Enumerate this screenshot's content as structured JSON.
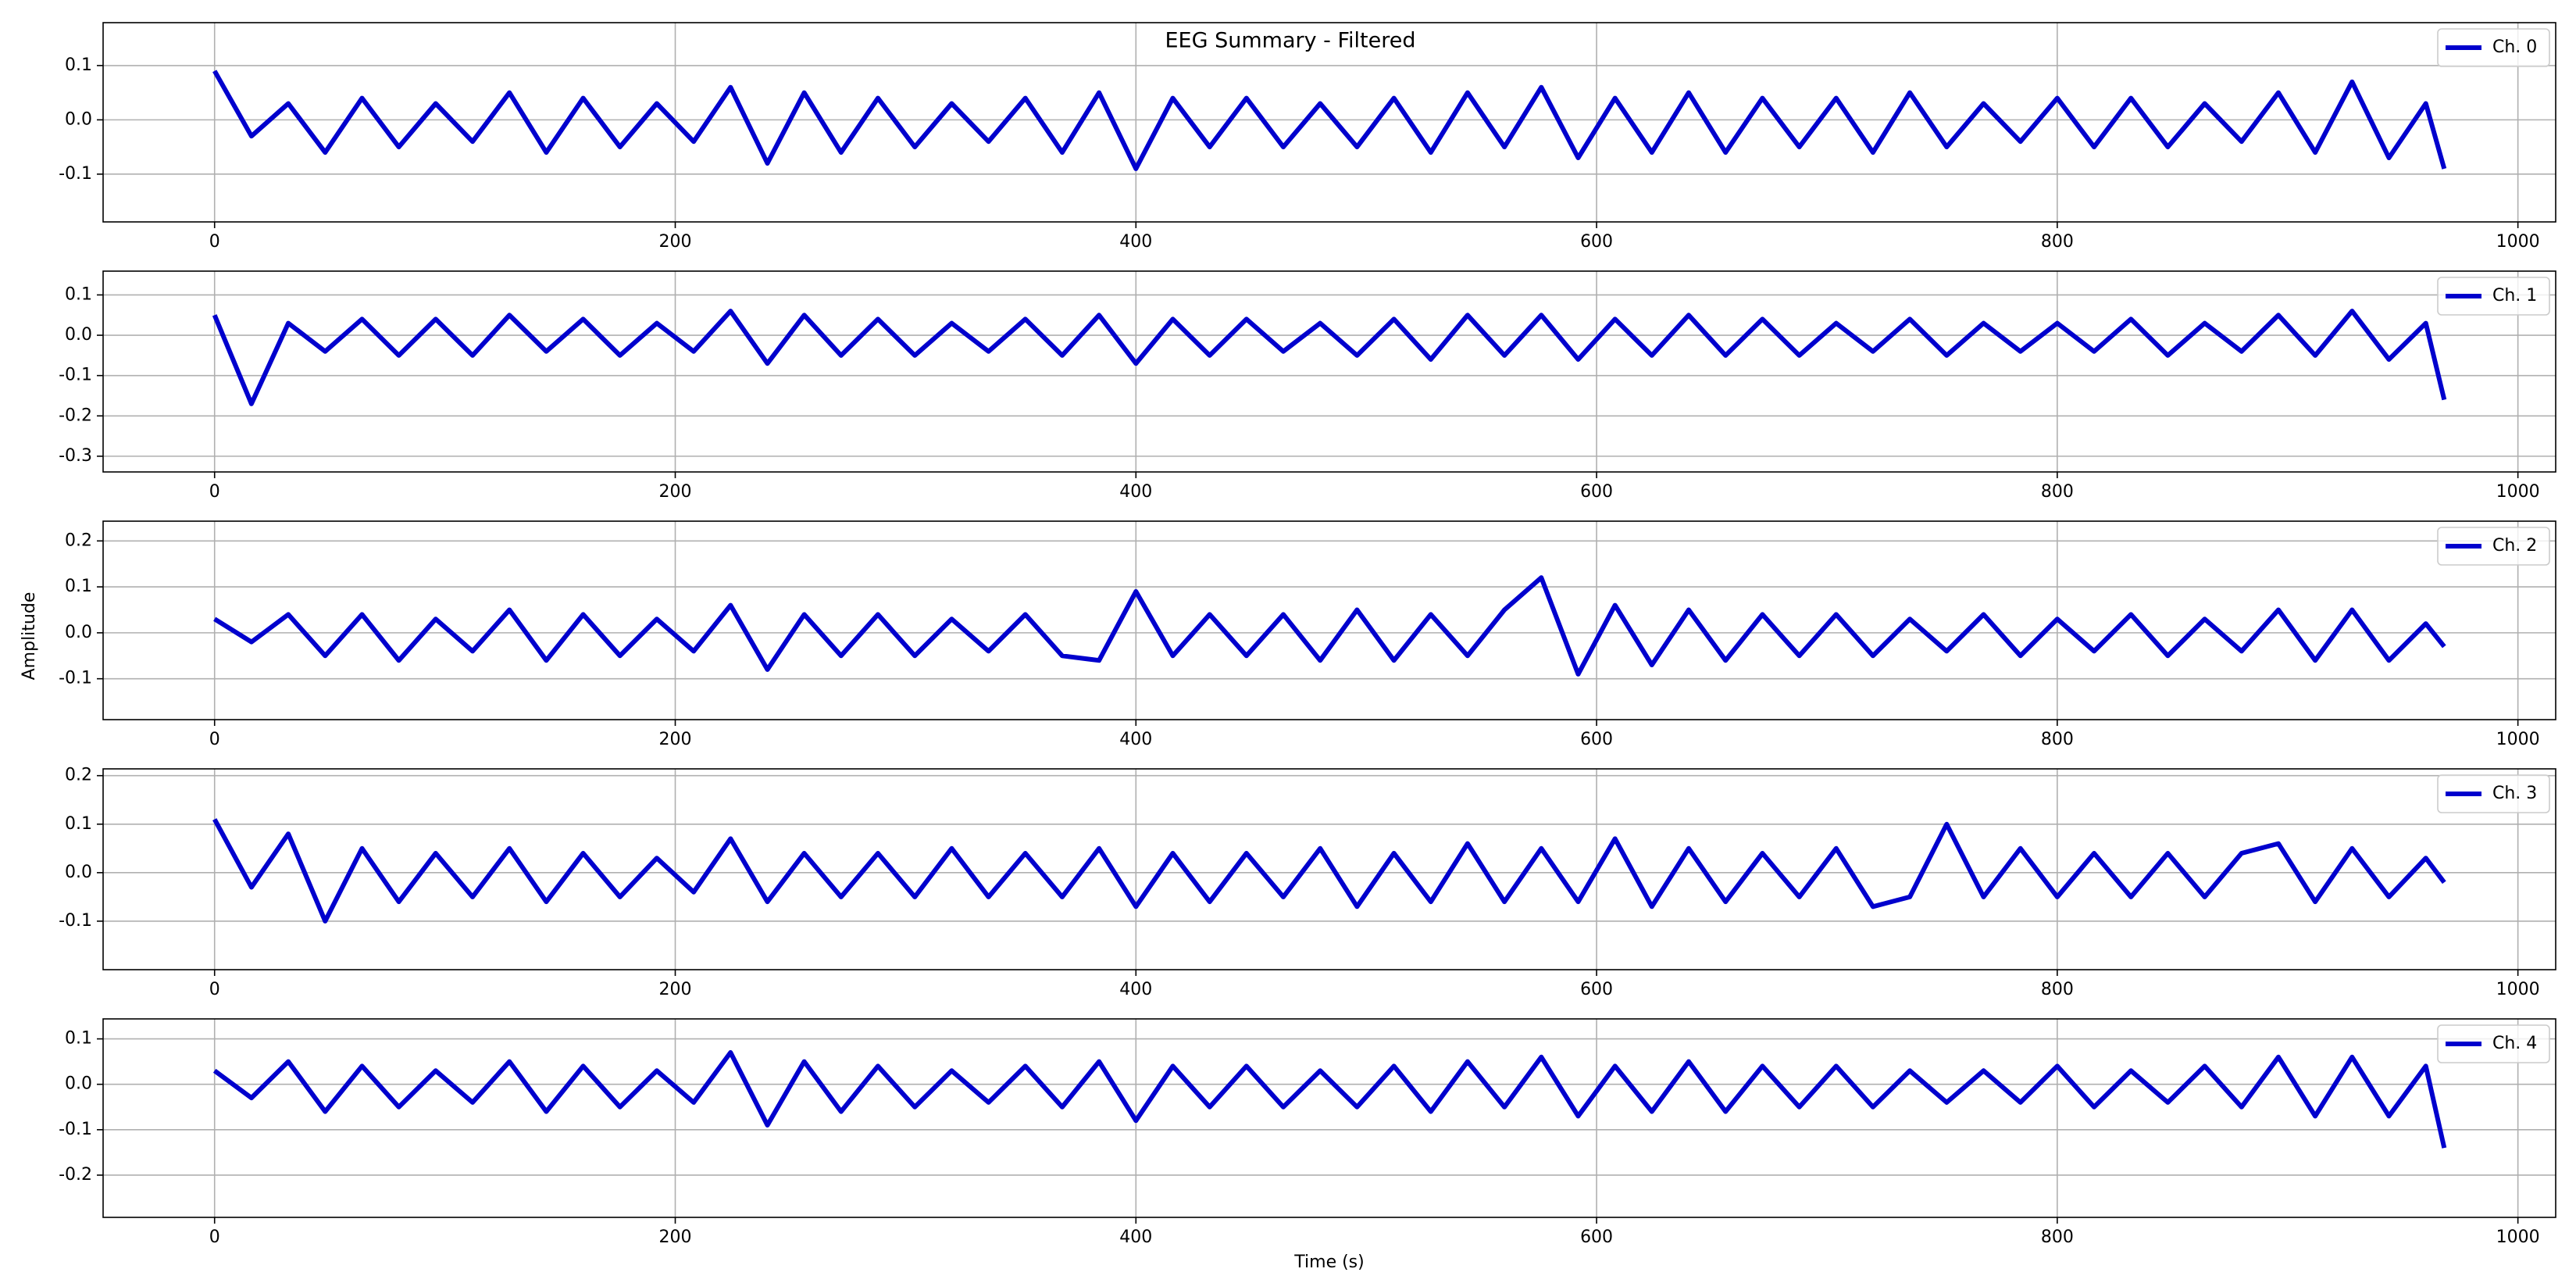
{
  "chart_data": [
    {
      "type": "line",
      "title": "EEG Summary - Filtered",
      "x": [
        0,
        16,
        32,
        48,
        64,
        80,
        96,
        112,
        128,
        144,
        160,
        176,
        192,
        208,
        224,
        240,
        256,
        272,
        288,
        304,
        320,
        336,
        352,
        368,
        384,
        400,
        416,
        432,
        448,
        464,
        480,
        496,
        512,
        528,
        544,
        560,
        576,
        592,
        608,
        624,
        640,
        656,
        672,
        688,
        704,
        720,
        736,
        752,
        768,
        784,
        800,
        816,
        832,
        848,
        864,
        880,
        896,
        912,
        928,
        944,
        960,
        968
      ],
      "series": [
        {
          "name": "Ch. 0",
          "color": "#0000cd",
          "values": [
            0.09,
            -0.03,
            0.03,
            -0.06,
            0.04,
            -0.05,
            0.03,
            -0.04,
            0.05,
            -0.06,
            0.04,
            -0.05,
            0.03,
            -0.04,
            0.06,
            -0.08,
            0.05,
            -0.06,
            0.04,
            -0.05,
            0.03,
            -0.04,
            0.04,
            -0.06,
            0.05,
            -0.09,
            0.04,
            -0.05,
            0.04,
            -0.05,
            0.03,
            -0.05,
            0.04,
            -0.06,
            0.05,
            -0.05,
            0.06,
            -0.07,
            0.04,
            -0.06,
            0.05,
            -0.06,
            0.04,
            -0.05,
            0.04,
            -0.06,
            0.05,
            -0.05,
            0.03,
            -0.04,
            0.04,
            -0.05,
            0.04,
            -0.05,
            0.03,
            -0.04,
            0.05,
            -0.06,
            0.07,
            -0.07,
            0.03,
            -0.09
          ]
        }
      ],
      "xlim": [
        -48.4,
        1016.4
      ],
      "ylim": [
        -0.188,
        0.179
      ],
      "xticks": [
        0,
        200,
        400,
        600,
        800,
        1000
      ],
      "yticks": [
        0.1,
        {
          "value": 0,
          "label": "0.0"
        },
        -0.1
      ],
      "grid": true,
      "legend": "upper right"
    },
    {
      "type": "line",
      "x": [
        0,
        16,
        32,
        48,
        64,
        80,
        96,
        112,
        128,
        144,
        160,
        176,
        192,
        208,
        224,
        240,
        256,
        272,
        288,
        304,
        320,
        336,
        352,
        368,
        384,
        400,
        416,
        432,
        448,
        464,
        480,
        496,
        512,
        528,
        544,
        560,
        576,
        592,
        608,
        624,
        640,
        656,
        672,
        688,
        704,
        720,
        736,
        752,
        768,
        784,
        800,
        816,
        832,
        848,
        864,
        880,
        896,
        912,
        928,
        944,
        960,
        968
      ],
      "series": [
        {
          "name": "Ch. 1",
          "color": "#0000cd",
          "values": [
            0.05,
            -0.17,
            0.03,
            -0.04,
            0.04,
            -0.05,
            0.04,
            -0.05,
            0.05,
            -0.04,
            0.04,
            -0.05,
            0.03,
            -0.04,
            0.06,
            -0.07,
            0.05,
            -0.05,
            0.04,
            -0.05,
            0.03,
            -0.04,
            0.04,
            -0.05,
            0.05,
            -0.07,
            0.04,
            -0.05,
            0.04,
            -0.04,
            0.03,
            -0.05,
            0.04,
            -0.06,
            0.05,
            -0.05,
            0.05,
            -0.06,
            0.04,
            -0.05,
            0.05,
            -0.05,
            0.04,
            -0.05,
            0.03,
            -0.04,
            0.04,
            -0.05,
            0.03,
            -0.04,
            0.03,
            -0.04,
            0.04,
            -0.05,
            0.03,
            -0.04,
            0.05,
            -0.05,
            0.06,
            -0.06,
            0.03,
            -0.16
          ]
        }
      ],
      "xlim": [
        -48.4,
        1016.4
      ],
      "ylim": [
        -0.339,
        0.159
      ],
      "xticks": [
        0,
        200,
        400,
        600,
        800,
        1000
      ],
      "yticks": [
        0.1,
        {
          "value": 0,
          "label": "0.0"
        },
        -0.1,
        -0.2,
        -0.3
      ],
      "grid": true,
      "legend": "upper right"
    },
    {
      "type": "line",
      "y_label": "Amplitude",
      "x": [
        0,
        16,
        32,
        48,
        64,
        80,
        96,
        112,
        128,
        144,
        160,
        176,
        192,
        208,
        224,
        240,
        256,
        272,
        288,
        304,
        320,
        336,
        352,
        368,
        384,
        400,
        416,
        432,
        448,
        464,
        480,
        496,
        512,
        528,
        544,
        560,
        576,
        592,
        608,
        624,
        640,
        656,
        672,
        688,
        704,
        720,
        736,
        752,
        768,
        784,
        800,
        816,
        832,
        848,
        864,
        880,
        896,
        912,
        928,
        944,
        960,
        968
      ],
      "series": [
        {
          "name": "Ch. 2",
          "color": "#0000cd",
          "values": [
            0.03,
            -0.02,
            0.04,
            -0.05,
            0.04,
            -0.06,
            0.03,
            -0.04,
            0.05,
            -0.06,
            0.04,
            -0.05,
            0.03,
            -0.04,
            0.06,
            -0.08,
            0.04,
            -0.05,
            0.04,
            -0.05,
            0.03,
            -0.04,
            0.04,
            -0.05,
            -0.06,
            0.09,
            -0.05,
            0.04,
            -0.05,
            0.04,
            -0.06,
            0.05,
            -0.06,
            0.04,
            -0.05,
            0.05,
            0.12,
            -0.09,
            0.06,
            -0.07,
            0.05,
            -0.06,
            0.04,
            -0.05,
            0.04,
            -0.05,
            0.03,
            -0.04,
            0.04,
            -0.05,
            0.03,
            -0.04,
            0.04,
            -0.05,
            0.03,
            -0.04,
            0.05,
            -0.06,
            0.05,
            -0.06,
            0.02,
            -0.03
          ]
        }
      ],
      "xlim": [
        -48.4,
        1016.4
      ],
      "ylim": [
        -0.189,
        0.243
      ],
      "xticks": [
        0,
        200,
        400,
        600,
        800,
        1000
      ],
      "yticks": [
        0.2,
        0.1,
        {
          "value": 0,
          "label": "0.0"
        },
        -0.1
      ],
      "grid": true,
      "legend": "upper right"
    },
    {
      "type": "line",
      "x": [
        0,
        16,
        32,
        48,
        64,
        80,
        96,
        112,
        128,
        144,
        160,
        176,
        192,
        208,
        224,
        240,
        256,
        272,
        288,
        304,
        320,
        336,
        352,
        368,
        384,
        400,
        416,
        432,
        448,
        464,
        480,
        496,
        512,
        528,
        544,
        560,
        576,
        592,
        608,
        624,
        640,
        656,
        672,
        688,
        704,
        720,
        736,
        752,
        768,
        784,
        800,
        816,
        832,
        848,
        864,
        880,
        896,
        912,
        928,
        944,
        960,
        968
      ],
      "series": [
        {
          "name": "Ch. 3",
          "color": "#0000cd",
          "values": [
            0.11,
            -0.03,
            0.08,
            -0.1,
            0.05,
            -0.06,
            0.04,
            -0.05,
            0.05,
            -0.06,
            0.04,
            -0.05,
            0.03,
            -0.04,
            0.07,
            -0.06,
            0.04,
            -0.05,
            0.04,
            -0.05,
            0.05,
            -0.05,
            0.04,
            -0.05,
            0.05,
            -0.07,
            0.04,
            -0.06,
            0.04,
            -0.05,
            0.05,
            -0.07,
            0.04,
            -0.06,
            0.06,
            -0.06,
            0.05,
            -0.06,
            0.07,
            -0.07,
            0.05,
            -0.06,
            0.04,
            -0.05,
            0.05,
            -0.07,
            -0.05,
            0.1,
            -0.05,
            0.05,
            -0.05,
            0.04,
            -0.05,
            0.04,
            -0.05,
            0.04,
            0.06,
            -0.06,
            0.05,
            -0.05,
            0.03,
            -0.02
          ]
        }
      ],
      "xlim": [
        -48.4,
        1016.4
      ],
      "ylim": [
        -0.2,
        0.214
      ],
      "xticks": [
        0,
        200,
        400,
        600,
        800,
        1000
      ],
      "yticks": [
        0.2,
        0.1,
        {
          "value": 0,
          "label": "0.0"
        },
        -0.1
      ],
      "grid": true,
      "legend": "upper right"
    },
    {
      "type": "line",
      "x_label": "Time (s)",
      "x": [
        0,
        16,
        32,
        48,
        64,
        80,
        96,
        112,
        128,
        144,
        160,
        176,
        192,
        208,
        224,
        240,
        256,
        272,
        288,
        304,
        320,
        336,
        352,
        368,
        384,
        400,
        416,
        432,
        448,
        464,
        480,
        496,
        512,
        528,
        544,
        560,
        576,
        592,
        608,
        624,
        640,
        656,
        672,
        688,
        704,
        720,
        736,
        752,
        768,
        784,
        800,
        816,
        832,
        848,
        864,
        880,
        896,
        912,
        928,
        944,
        960,
        968
      ],
      "series": [
        {
          "name": "Ch. 4",
          "color": "#0000cd",
          "values": [
            0.03,
            -0.03,
            0.05,
            -0.06,
            0.04,
            -0.05,
            0.03,
            -0.04,
            0.05,
            -0.06,
            0.04,
            -0.05,
            0.03,
            -0.04,
            0.07,
            -0.09,
            0.05,
            -0.06,
            0.04,
            -0.05,
            0.03,
            -0.04,
            0.04,
            -0.05,
            0.05,
            -0.08,
            0.04,
            -0.05,
            0.04,
            -0.05,
            0.03,
            -0.05,
            0.04,
            -0.06,
            0.05,
            -0.05,
            0.06,
            -0.07,
            0.04,
            -0.06,
            0.05,
            -0.06,
            0.04,
            -0.05,
            0.04,
            -0.05,
            0.03,
            -0.04,
            0.03,
            -0.04,
            0.04,
            -0.05,
            0.03,
            -0.04,
            0.04,
            -0.05,
            0.06,
            -0.07,
            0.06,
            -0.07,
            0.04,
            -0.14
          ]
        }
      ],
      "xlim": [
        -48.4,
        1016.4
      ],
      "ylim": [
        -0.293,
        0.144
      ],
      "xticks": [
        0,
        200,
        400,
        600,
        800,
        1000
      ],
      "yticks": [
        0.1,
        {
          "value": 0,
          "label": "0.0"
        },
        -0.1,
        -0.2
      ],
      "grid": true,
      "legend": "upper right"
    }
  ]
}
